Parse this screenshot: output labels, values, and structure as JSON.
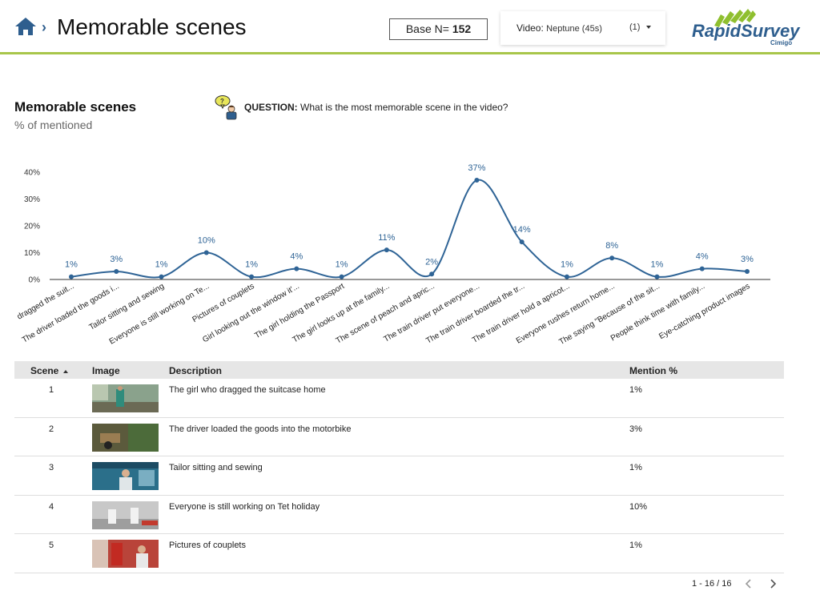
{
  "header": {
    "title": "Memorable scenes",
    "base_label": "Base N=",
    "base_value": "152",
    "video_label": "Video",
    "video_value": "Neptune (45s)",
    "video_count": "(1)",
    "logo_text": "RapidSurvey",
    "logo_sub": "Cimigo"
  },
  "question": {
    "label": "QUESTION:",
    "text": "What is the most memorable scene in the video?"
  },
  "chart_data": {
    "type": "line",
    "title": "Memorable scenes",
    "subtitle": "% of mentioned",
    "categories": [
      "dragged the suit...",
      "The driver loaded the goods i...",
      "Tailor sitting and sewing",
      "Everyone is still working on Te...",
      "Pictures of couplets",
      "Girl looking out the window it'...",
      "The girl holding the Passport",
      "The girl looks up at the family...",
      "The scene of peach and apric...",
      "The train driver put everyone...",
      "The train driver boarded the tr...",
      "The train driver hold a apricot...",
      "Everyone rushes return home...",
      "The saying \"Because of the sit...",
      "People think time with family...",
      "Eye-catching product images"
    ],
    "values": [
      1,
      3,
      1,
      10,
      1,
      4,
      1,
      11,
      2,
      37,
      14,
      1,
      8,
      1,
      4,
      3
    ],
    "value_labels": [
      "1%",
      "3%",
      "1%",
      "10%",
      "1%",
      "4%",
      "1%",
      "11%",
      "2%",
      "37%",
      "14%",
      "1%",
      "8%",
      "1%",
      "4%",
      "3%"
    ],
    "yticks": [
      "0%",
      "10%",
      "20%",
      "30%",
      "40%"
    ],
    "ylim": [
      0,
      40
    ],
    "color": "#2f6496",
    "grid": false,
    "legend": "none"
  },
  "table": {
    "headers": {
      "scene": "Scene",
      "image": "Image",
      "description": "Description",
      "mention": "Mention %"
    },
    "rows": [
      {
        "scene": "1",
        "description": "The girl who dragged the suitcase home",
        "mention": "1%"
      },
      {
        "scene": "2",
        "description": "The driver loaded the goods into the motorbike",
        "mention": "3%"
      },
      {
        "scene": "3",
        "description": "Tailor sitting and sewing",
        "mention": "1%"
      },
      {
        "scene": "4",
        "description": "Everyone is still working on Tet holiday",
        "mention": "10%"
      },
      {
        "scene": "5",
        "description": "Pictures of couplets",
        "mention": "1%"
      }
    ]
  },
  "pager": {
    "text": "1 - 16 / 16"
  }
}
